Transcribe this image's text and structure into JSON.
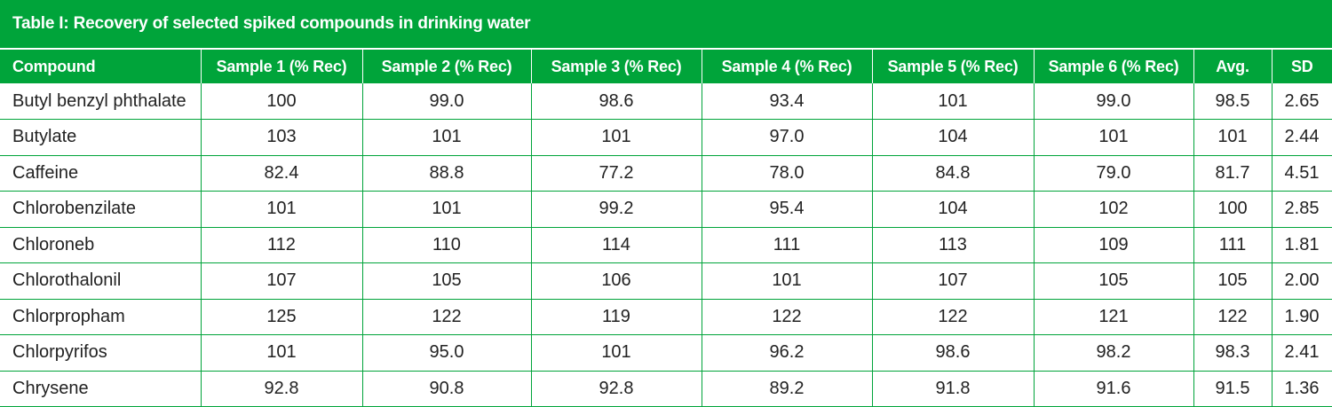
{
  "title": "Table I: Recovery of selected spiked compounds in drinking water",
  "columns": [
    "Compound",
    "Sample 1 (% Rec)",
    "Sample 2 (% Rec)",
    "Sample 3 (% Rec)",
    "Sample 4 (% Rec)",
    "Sample 5 (% Rec)",
    "Sample 6 (% Rec)",
    "Avg.",
    "SD"
  ],
  "rows": [
    [
      "Butyl benzyl phthalate",
      "100",
      "99.0",
      "98.6",
      "93.4",
      "101",
      "99.0",
      "98.5",
      "2.65"
    ],
    [
      "Butylate",
      "103",
      "101",
      "101",
      "97.0",
      "104",
      "101",
      "101",
      "2.44"
    ],
    [
      "Caffeine",
      "82.4",
      "88.8",
      "77.2",
      "78.0",
      "84.8",
      "79.0",
      "81.7",
      "4.51"
    ],
    [
      "Chlorobenzilate",
      "101",
      "101",
      "99.2",
      "95.4",
      "104",
      "102",
      "100",
      "2.85"
    ],
    [
      "Chloroneb",
      "112",
      "110",
      "114",
      "111",
      "113",
      "109",
      "111",
      "1.81"
    ],
    [
      "Chlorothalonil",
      "107",
      "105",
      "106",
      "101",
      "107",
      "105",
      "105",
      "2.00"
    ],
    [
      "Chlorpropham",
      "125",
      "122",
      "119",
      "122",
      "122",
      "121",
      "122",
      "1.90"
    ],
    [
      "Chlorpyrifos",
      "101",
      "95.0",
      "101",
      "96.2",
      "98.6",
      "98.2",
      "98.3",
      "2.41"
    ],
    [
      "Chrysene",
      "92.8",
      "90.8",
      "92.8",
      "89.2",
      "91.8",
      "91.6",
      "91.5",
      "1.36"
    ]
  ],
  "colors": {
    "header_green": "#00a43a",
    "text": "#222222"
  }
}
